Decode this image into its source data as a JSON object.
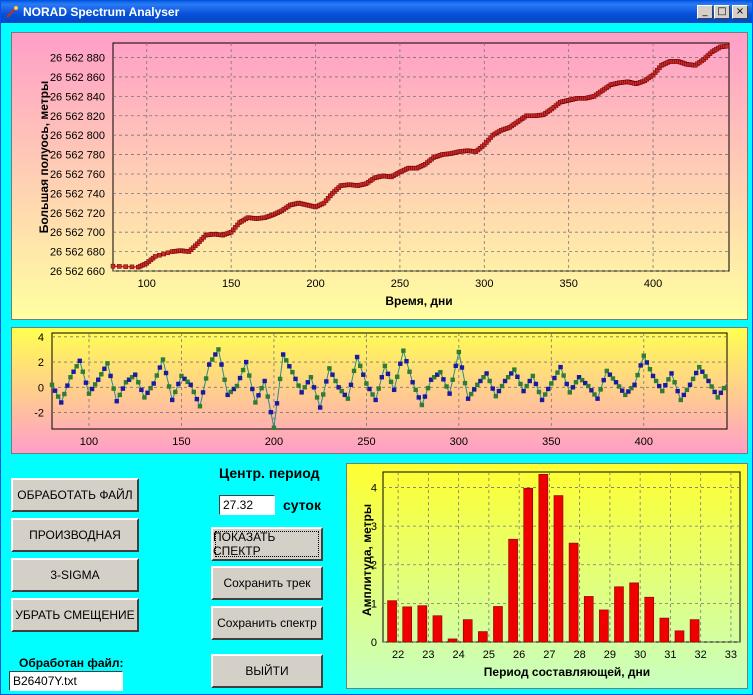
{
  "window": {
    "title": "NORAD Spectrum Analyser",
    "controls": [
      "_",
      "□",
      "×"
    ]
  },
  "chart1": {
    "ylabel": "Большая полуось, метры",
    "xlabel": "Время, дни",
    "yticks": [
      "26 562 660",
      "26 562 680",
      "26 562 700",
      "26 562 720",
      "26 562 740",
      "26 562 760",
      "26 562 780",
      "26 562 800",
      "26 562 820",
      "26 562 840",
      "26 562 860",
      "26 562 880"
    ],
    "xticks": [
      "100",
      "150",
      "200",
      "250",
      "300",
      "350",
      "400"
    ]
  },
  "chart2": {
    "yticks": [
      "4",
      "2",
      "0",
      "-2"
    ],
    "xticks": [
      "100",
      "150",
      "200",
      "250",
      "300",
      "350",
      "400"
    ]
  },
  "chart3": {
    "ylabel": "Амплитуда, метры",
    "xlabel": "Период составляющей, дни",
    "yticks": [
      "0",
      "1",
      "2",
      "3",
      "4"
    ],
    "xticks": [
      "22",
      "23",
      "24",
      "25",
      "26",
      "27",
      "28",
      "29",
      "30",
      "31",
      "32",
      "33"
    ]
  },
  "controls": {
    "btn_process": "ОБРАБОТАТЬ ФАЙЛ",
    "btn_derivative": "ПРОИЗВОДНАЯ",
    "btn_sigma": "3-SIGMA",
    "btn_offset": "УБРАТЬ СМЕЩЕНИЕ",
    "center_period_label": "Центр. период",
    "center_period_value": "27.32",
    "period_unit": "суток",
    "btn_show_spectrum": "ПОКАЗАТЬ СПЕКТР",
    "btn_save_track": "Сохранить трек",
    "btn_save_spectrum": "Сохранить спектр",
    "btn_exit": "ВЫЙТИ",
    "processed_label": "Обработан файл:",
    "processed_file": "B26407Y.txt"
  },
  "colors": {
    "bar": "#ee0000",
    "series1": "#cc2a2a",
    "series2_a": "#1a1aa0",
    "series2_b": "#2e7d32"
  },
  "chart_data": [
    {
      "type": "line",
      "title": "",
      "xlabel": "Время, дни",
      "ylabel": "Большая полуось, метры",
      "xlim": [
        80,
        445
      ],
      "ylim": [
        26562660,
        26562895
      ],
      "points_x": [
        80,
        95,
        100,
        105,
        115,
        120,
        125,
        130,
        135,
        140,
        145,
        150,
        155,
        160,
        165,
        170,
        175,
        180,
        185,
        190,
        195,
        200,
        205,
        210,
        215,
        220,
        225,
        230,
        235,
        240,
        245,
        250,
        255,
        260,
        265,
        270,
        275,
        280,
        285,
        290,
        295,
        300,
        305,
        310,
        315,
        320,
        325,
        330,
        335,
        340,
        345,
        350,
        355,
        360,
        365,
        370,
        375,
        380,
        385,
        390,
        395,
        400,
        405,
        410,
        415,
        420,
        425,
        430,
        435,
        440,
        445
      ],
      "points_y": [
        26562665,
        26562664,
        26562668,
        26562675,
        26562680,
        26562681,
        26562680,
        26562688,
        26562697,
        26562698,
        26562697,
        26562700,
        26562710,
        26562715,
        26562714,
        26562715,
        26562718,
        26562722,
        26562728,
        26562730,
        26562728,
        26562726,
        26562730,
        26562740,
        26562748,
        26562749,
        26562748,
        26562750,
        26562756,
        26562758,
        26562757,
        26562762,
        26562766,
        26562766,
        26562770,
        26562777,
        26562780,
        26562781,
        26562783,
        26562784,
        26562783,
        26562790,
        26562800,
        26562805,
        26562808,
        26562814,
        26562820,
        26562820,
        26562821,
        26562827,
        26562834,
        26562836,
        26562838,
        26562838,
        26562840,
        26562846,
        26562852,
        26562854,
        26562855,
        26562853,
        26562856,
        26562862,
        26562872,
        26562876,
        26562876,
        26562873,
        26562872,
        26562878,
        26562886,
        26562891,
        26562892
      ]
    },
    {
      "type": "line",
      "title": "",
      "xlim": [
        80,
        445
      ],
      "ylim": [
        -3.3,
        4.3
      ],
      "points_x": [
        80,
        85,
        90,
        95,
        100,
        105,
        110,
        115,
        120,
        125,
        130,
        135,
        140,
        145,
        150,
        155,
        160,
        165,
        170,
        175,
        180,
        185,
        190,
        195,
        200,
        205,
        210,
        215,
        220,
        225,
        230,
        235,
        240,
        245,
        250,
        255,
        260,
        265,
        270,
        275,
        280,
        285,
        290,
        295,
        300,
        305,
        310,
        315,
        320,
        325,
        330,
        335,
        340,
        345,
        350,
        355,
        360,
        365,
        370,
        375,
        380,
        385,
        390,
        395,
        400,
        405,
        410,
        415,
        420,
        425,
        430,
        435,
        440,
        445
      ],
      "points_y": [
        0.2,
        -1.2,
        0.8,
        2.1,
        -0.5,
        0.6,
        1.9,
        -1.1,
        0.4,
        1.0,
        -0.8,
        0.3,
        2.2,
        -1.0,
        0.9,
        0.2,
        -1.5,
        1.8,
        3.0,
        -0.6,
        0.1,
        2.0,
        -1.2,
        0.5,
        -3.2,
        2.6,
        1.2,
        -0.4,
        0.8,
        -1.6,
        1.5,
        0.0,
        -0.9,
        2.4,
        0.3,
        -1.0,
        1.7,
        -0.2,
        2.9,
        0.4,
        -1.4,
        0.6,
        1.2,
        -0.5,
        2.8,
        -0.9,
        0.2,
        1.1,
        -0.7,
        0.5,
        1.4,
        -0.3,
        0.9,
        -1.0,
        0.3,
        1.6,
        -0.4,
        0.8,
        0.1,
        -0.9,
        1.3,
        0.4,
        -0.6,
        0.2,
        2.5,
        0.9,
        -0.3,
        1.1,
        -1.0,
        0.2,
        1.6,
        0.5,
        -0.8,
        0.3
      ]
    },
    {
      "type": "bar",
      "title": "",
      "xlabel": "Период составляющей, дни",
      "ylabel": "Амплитуда, метры",
      "categories": [
        "21.8",
        "22.3",
        "22.8",
        "23.3",
        "23.8",
        "24.3",
        "24.8",
        "25.3",
        "25.8",
        "26.3",
        "26.8",
        "27.3",
        "27.8",
        "28.3",
        "28.8",
        "29.3",
        "29.8",
        "30.3",
        "30.8",
        "31.3",
        "31.8",
        "32.3",
        "32.8"
      ],
      "values": [
        1.07,
        0.91,
        0.94,
        0.68,
        0.08,
        0.58,
        0.27,
        0.92,
        2.66,
        3.98,
        4.34,
        3.79,
        2.56,
        1.18,
        0.83,
        1.43,
        1.53,
        1.16,
        0.62,
        0.29,
        0.58,
        0,
        0
      ],
      "xlim": [
        21.5,
        33.3
      ],
      "ylim": [
        0,
        4.4
      ]
    }
  ]
}
